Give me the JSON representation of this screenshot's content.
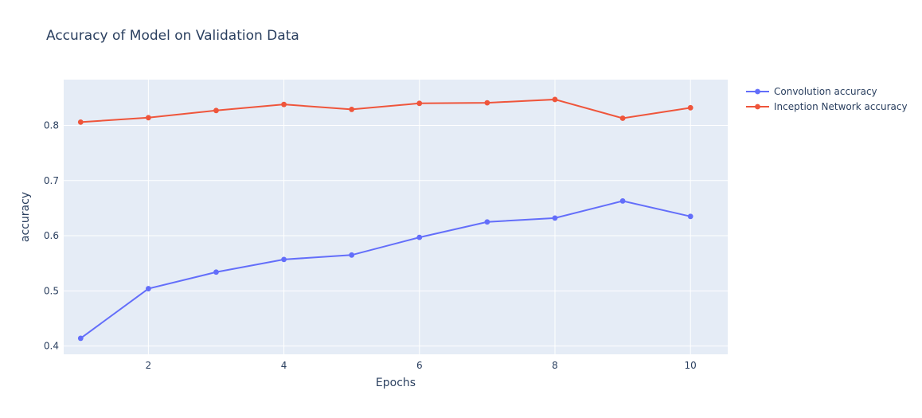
{
  "chart_data": {
    "type": "line",
    "title": "Accuracy of Model on Validation Data",
    "xlabel": "Epochs",
    "ylabel": "accuracy",
    "x": [
      1,
      2,
      3,
      4,
      5,
      6,
      7,
      8,
      9,
      10
    ],
    "xlim": [
      0.75,
      10.55
    ],
    "ylim": [
      0.385,
      0.883
    ],
    "xticks": [
      2,
      4,
      6,
      8,
      10
    ],
    "yticks": [
      0.4,
      0.5,
      0.6,
      0.7,
      0.8
    ],
    "xtick_labels": [
      "2",
      "4",
      "6",
      "8",
      "10"
    ],
    "ytick_labels": [
      "0.4",
      "0.5",
      "0.6",
      "0.7",
      "0.8"
    ],
    "grid": true,
    "legend_position": "top-right",
    "plot_background": "#e5ecf6",
    "series": [
      {
        "name": "Convolution accuracy",
        "color": "#636efa",
        "values": [
          0.414,
          0.504,
          0.534,
          0.557,
          0.565,
          0.597,
          0.625,
          0.632,
          0.663,
          0.635
        ]
      },
      {
        "name": "Inception Network accuracy",
        "color": "#ef553b",
        "values": [
          0.806,
          0.814,
          0.827,
          0.838,
          0.829,
          0.84,
          0.841,
          0.847,
          0.813,
          0.832
        ]
      }
    ]
  }
}
